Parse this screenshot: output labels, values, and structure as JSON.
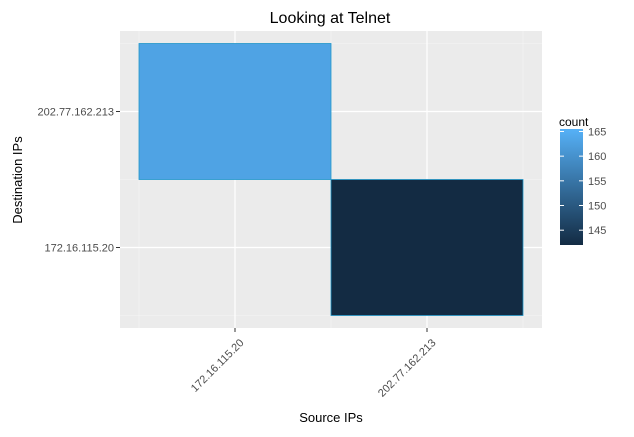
{
  "chart_data": {
    "type": "heatmap",
    "title": "Looking at Telnet",
    "xlabel": "Source IPs",
    "ylabel": "Destination IPs",
    "x_categories": [
      "172.16.115.20",
      "202.77.162.213"
    ],
    "y_categories": [
      "172.16.115.20",
      "202.77.162.213"
    ],
    "cells": [
      {
        "x": "172.16.115.20",
        "y": "202.77.162.213",
        "count": 163
      },
      {
        "x": "202.77.162.213",
        "y": "172.16.115.20",
        "count": 142
      }
    ],
    "legend": {
      "title": "count",
      "ticks": [
        145,
        150,
        155,
        160,
        165
      ],
      "range": [
        142,
        165.5
      ],
      "color_low": "#132b43",
      "color_high": "#56b1f7",
      "placement": "right"
    },
    "panel_background": "#ebebeb",
    "grid": true
  }
}
